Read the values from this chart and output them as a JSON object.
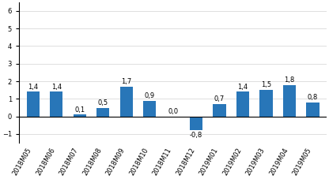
{
  "categories": [
    "2018M05",
    "2018M06",
    "2018M07",
    "2018M08",
    "2018M09",
    "2018M10",
    "2018M11",
    "2018M12",
    "2019M01",
    "2019M02",
    "2019M03",
    "2019M04",
    "2019M05"
  ],
  "values": [
    1.4,
    1.4,
    0.1,
    0.5,
    1.7,
    0.9,
    0.0,
    -0.8,
    0.7,
    1.4,
    1.5,
    1.8,
    0.8
  ],
  "bar_color": "#2876b8",
  "ylim": [
    -1.5,
    6.5
  ],
  "yticks": [
    -1,
    0,
    1,
    2,
    3,
    4,
    5,
    6
  ],
  "label_fontsize": 6.0,
  "tick_fontsize": 6.0,
  "background_color": "#ffffff",
  "grid_color": "#d9d9d9",
  "bar_width": 0.55
}
